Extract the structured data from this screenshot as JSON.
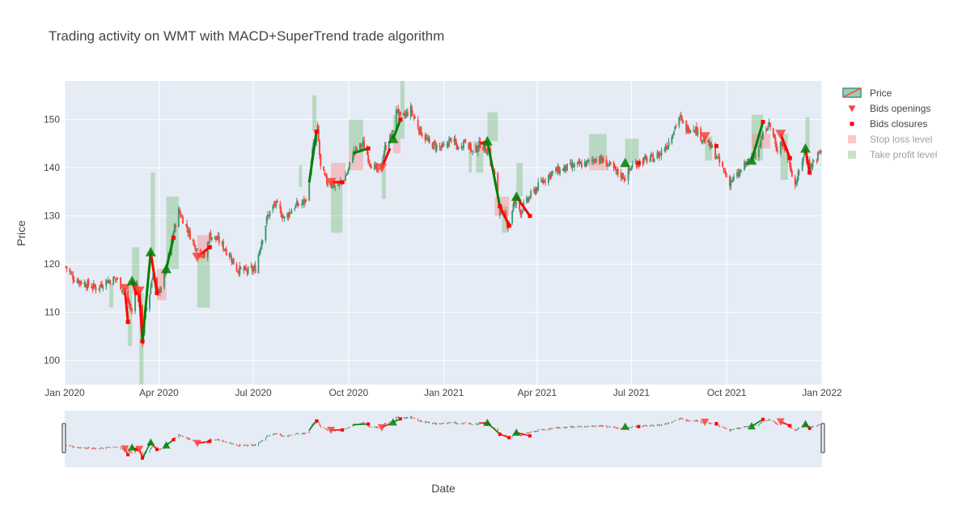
{
  "chart_data": {
    "type": "candlestick",
    "title": "Trading activity on WMT with MACD+SuperTrend trade algorithm",
    "xlabel": "Date",
    "ylabel": "Price",
    "xlim": [
      "2020-01-01",
      "2022-01-01"
    ],
    "ylim": [
      95,
      158
    ],
    "yticks": [
      100,
      110,
      120,
      130,
      140,
      150
    ],
    "xticks": [
      {
        "date": "2020-01-01",
        "label": "Jan 2020"
      },
      {
        "date": "2020-04-01",
        "label": "Apr 2020"
      },
      {
        "date": "2020-07-01",
        "label": "Jul 2020"
      },
      {
        "date": "2020-10-01",
        "label": "Oct 2020"
      },
      {
        "date": "2021-01-01",
        "label": "Jan 2021"
      },
      {
        "date": "2021-04-01",
        "label": "Apr 2021"
      },
      {
        "date": "2021-07-01",
        "label": "Jul 2021"
      },
      {
        "date": "2021-10-01",
        "label": "Oct 2021"
      },
      {
        "date": "2022-01-01",
        "label": "Jan 2022"
      }
    ],
    "grid": true,
    "legend_position": "top-right",
    "rangeslider": true,
    "colors": {
      "increasing": "#3D9970",
      "decreasing": "#FF4136",
      "background": "#E5ECF6",
      "buy": "#008000",
      "sell": "#FF0000",
      "stop_loss": "#FF8080",
      "take_profit": "#80C080"
    },
    "legend": [
      {
        "name": "Price",
        "marker": "candle",
        "color": "#3D9970",
        "faded": false
      },
      {
        "name": "Bids openings",
        "marker": "triangle-down",
        "color": "#FF4136",
        "faded": false
      },
      {
        "name": "Bids closures",
        "marker": "square",
        "color": "#FF0000",
        "faded": false
      },
      {
        "name": "Stop loss level",
        "marker": "rect",
        "color": "#FF8080",
        "faded": true
      },
      {
        "name": "Take profit level",
        "marker": "rect",
        "color": "#80C080",
        "faded": true
      }
    ],
    "price_anchors": [
      [
        "2020-01-02",
        119.5
      ],
      [
        "2020-01-10",
        117
      ],
      [
        "2020-01-20",
        116
      ],
      [
        "2020-02-01",
        115
      ],
      [
        "2020-02-10",
        116.5
      ],
      [
        "2020-02-20",
        117
      ],
      [
        "2020-02-28",
        114
      ],
      [
        "2020-03-06",
        110
      ],
      [
        "2020-03-10",
        117
      ],
      [
        "2020-03-16",
        104
      ],
      [
        "2020-03-19",
        110
      ],
      [
        "2020-03-23",
        114
      ],
      [
        "2020-03-26",
        118
      ],
      [
        "2020-03-31",
        113.5
      ],
      [
        "2020-04-08",
        119
      ],
      [
        "2020-04-13",
        125
      ],
      [
        "2020-04-20",
        131
      ],
      [
        "2020-04-27",
        128
      ],
      [
        "2020-05-05",
        124
      ],
      [
        "2020-05-15",
        121.5
      ],
      [
        "2020-05-20",
        126
      ],
      [
        "2020-05-28",
        125
      ],
      [
        "2020-06-08",
        122
      ],
      [
        "2020-06-15",
        119
      ],
      [
        "2020-06-25",
        118.5
      ],
      [
        "2020-07-03",
        119
      ],
      [
        "2020-07-08",
        124
      ],
      [
        "2020-07-15",
        130
      ],
      [
        "2020-07-22",
        132.5
      ],
      [
        "2020-07-31",
        129.5
      ],
      [
        "2020-08-10",
        132
      ],
      [
        "2020-08-20",
        133
      ],
      [
        "2020-08-24",
        137
      ],
      [
        "2020-08-28",
        145
      ],
      [
        "2020-09-01",
        148
      ],
      [
        "2020-09-04",
        140
      ],
      [
        "2020-09-10",
        137
      ],
      [
        "2020-09-20",
        136
      ],
      [
        "2020-09-30",
        139
      ],
      [
        "2020-10-05",
        143
      ],
      [
        "2020-10-15",
        145
      ],
      [
        "2020-10-22",
        141
      ],
      [
        "2020-10-30",
        139
      ],
      [
        "2020-11-05",
        144
      ],
      [
        "2020-11-12",
        147
      ],
      [
        "2020-11-17",
        152.5
      ],
      [
        "2020-11-20",
        150
      ],
      [
        "2020-11-30",
        152
      ],
      [
        "2020-12-08",
        148
      ],
      [
        "2020-12-18",
        145
      ],
      [
        "2020-12-31",
        144
      ],
      [
        "2021-01-08",
        146
      ],
      [
        "2021-01-15",
        144
      ],
      [
        "2021-01-22",
        146
      ],
      [
        "2021-01-29",
        143
      ],
      [
        "2021-02-05",
        145
      ],
      [
        "2021-02-12",
        143.5
      ],
      [
        "2021-02-19",
        138
      ],
      [
        "2021-02-24",
        131
      ],
      [
        "2021-03-01",
        129.5
      ],
      [
        "2021-03-04",
        128
      ],
      [
        "2021-03-10",
        133
      ],
      [
        "2021-03-16",
        131
      ],
      [
        "2021-03-25",
        134
      ],
      [
        "2021-04-05",
        137
      ],
      [
        "2021-04-15",
        139
      ],
      [
        "2021-04-30",
        140
      ],
      [
        "2021-05-10",
        140.5
      ],
      [
        "2021-05-20",
        141
      ],
      [
        "2021-05-28",
        142
      ],
      [
        "2021-06-07",
        141
      ],
      [
        "2021-06-17",
        139
      ],
      [
        "2021-06-25",
        138
      ],
      [
        "2021-07-02",
        140.5
      ],
      [
        "2021-07-12",
        141.5
      ],
      [
        "2021-07-22",
        142
      ],
      [
        "2021-07-29",
        143
      ],
      [
        "2021-08-05",
        145
      ],
      [
        "2021-08-16",
        150.5
      ],
      [
        "2021-08-23",
        148
      ],
      [
        "2021-08-30",
        148.5
      ],
      [
        "2021-09-08",
        146
      ],
      [
        "2021-09-17",
        144
      ],
      [
        "2021-09-24",
        141
      ],
      [
        "2021-10-04",
        137
      ],
      [
        "2021-10-12",
        138.5
      ],
      [
        "2021-10-20",
        141
      ],
      [
        "2021-10-26",
        142
      ],
      [
        "2021-11-02",
        145
      ],
      [
        "2021-11-10",
        149.5
      ],
      [
        "2021-11-16",
        146
      ],
      [
        "2021-11-18",
        143
      ],
      [
        "2021-11-22",
        146
      ],
      [
        "2021-11-30",
        141.5
      ],
      [
        "2021-12-06",
        136.5
      ],
      [
        "2021-12-10",
        139
      ],
      [
        "2021-12-15",
        143.5
      ],
      [
        "2021-12-20",
        140
      ],
      [
        "2021-12-31",
        143.5
      ]
    ],
    "openings": [
      {
        "date": "2020-02-28",
        "price": 115,
        "dir": "down"
      },
      {
        "date": "2020-03-06",
        "price": 116.5,
        "dir": "up"
      },
      {
        "date": "2020-03-13",
        "price": 114.5,
        "dir": "down"
      },
      {
        "date": "2020-03-24",
        "price": 122.5,
        "dir": "up"
      },
      {
        "date": "2020-04-08",
        "price": 119,
        "dir": "up"
      },
      {
        "date": "2020-05-08",
        "price": 121.5,
        "dir": "down"
      },
      {
        "date": "2020-09-14",
        "price": 137,
        "dir": "down"
      },
      {
        "date": "2020-11-02",
        "price": 140,
        "dir": "down"
      },
      {
        "date": "2020-11-13",
        "price": 146,
        "dir": "up"
      },
      {
        "date": "2021-02-12",
        "price": 145.5,
        "dir": "up"
      },
      {
        "date": "2021-03-12",
        "price": 134,
        "dir": "up"
      },
      {
        "date": "2021-06-25",
        "price": 141,
        "dir": "up"
      },
      {
        "date": "2021-09-10",
        "price": 146.5,
        "dir": "down"
      },
      {
        "date": "2021-10-25",
        "price": 141.5,
        "dir": "up"
      },
      {
        "date": "2021-11-22",
        "price": 147,
        "dir": "down"
      },
      {
        "date": "2021-12-16",
        "price": 144,
        "dir": "up"
      }
    ],
    "closures": [
      {
        "date": "2020-03-02",
        "price": 108
      },
      {
        "date": "2020-03-10",
        "price": 114
      },
      {
        "date": "2020-03-16",
        "price": 104
      },
      {
        "date": "2020-03-30",
        "price": 114
      },
      {
        "date": "2020-04-15",
        "price": 125.5
      },
      {
        "date": "2020-05-20",
        "price": 123.5
      },
      {
        "date": "2020-08-31",
        "price": 147.5
      },
      {
        "date": "2020-09-25",
        "price": 137
      },
      {
        "date": "2020-10-20",
        "price": 144
      },
      {
        "date": "2020-11-20",
        "price": 150
      },
      {
        "date": "2021-02-24",
        "price": 132
      },
      {
        "date": "2021-03-05",
        "price": 128
      },
      {
        "date": "2021-03-25",
        "price": 130
      },
      {
        "date": "2021-07-08",
        "price": 141
      },
      {
        "date": "2021-09-21",
        "price": 144.5
      },
      {
        "date": "2021-11-05",
        "price": 149.5
      },
      {
        "date": "2021-12-01",
        "price": 142
      },
      {
        "date": "2021-12-20",
        "price": 139
      }
    ],
    "trade_lines": [
      {
        "from": [
          "2020-02-28",
          115
        ],
        "to": [
          "2020-03-02",
          108
        ],
        "color": "#FF0000"
      },
      {
        "from": [
          "2020-03-06",
          116.5
        ],
        "to": [
          "2020-03-10",
          114
        ],
        "color": "#FF0000"
      },
      {
        "from": [
          "2020-03-13",
          114.5
        ],
        "to": [
          "2020-03-16",
          104
        ],
        "color": "#FF0000"
      },
      {
        "from": [
          "2020-03-16",
          104
        ],
        "to": [
          "2020-03-24",
          122.5
        ],
        "color": "#008000"
      },
      {
        "from": [
          "2020-03-24",
          122.5
        ],
        "to": [
          "2020-03-30",
          114
        ],
        "color": "#FF0000"
      },
      {
        "from": [
          "2020-04-08",
          119
        ],
        "to": [
          "2020-04-15",
          125.5
        ],
        "color": "#008000"
      },
      {
        "from": [
          "2020-05-08",
          121.5
        ],
        "to": [
          "2020-05-20",
          123.5
        ],
        "color": "#FF0000"
      },
      {
        "from": [
          "2020-08-24",
          137
        ],
        "to": [
          "2020-08-31",
          147.5
        ],
        "color": "#008000"
      },
      {
        "from": [
          "2020-09-14",
          137
        ],
        "to": [
          "2020-09-25",
          137
        ],
        "color": "#FF0000"
      },
      {
        "from": [
          "2020-10-05",
          143
        ],
        "to": [
          "2020-10-20",
          144
        ],
        "color": "#008000"
      },
      {
        "from": [
          "2020-11-02",
          140
        ],
        "to": [
          "2020-11-10",
          144
        ],
        "color": "#FF0000"
      },
      {
        "from": [
          "2020-11-13",
          146
        ],
        "to": [
          "2020-11-20",
          150
        ],
        "color": "#008000"
      },
      {
        "from": [
          "2021-02-05",
          145
        ],
        "to": [
          "2021-02-12",
          145.5
        ],
        "color": "#FF0000"
      },
      {
        "from": [
          "2021-02-12",
          145.5
        ],
        "to": [
          "2021-02-24",
          132
        ],
        "color": "#008000"
      },
      {
        "from": [
          "2021-02-24",
          132
        ],
        "to": [
          "2021-03-05",
          128
        ],
        "color": "#FF0000"
      },
      {
        "from": [
          "2021-03-12",
          134
        ],
        "to": [
          "2021-03-25",
          130
        ],
        "color": "#FF0000"
      },
      {
        "from": [
          "2021-10-25",
          141.5
        ],
        "to": [
          "2021-11-05",
          149.5
        ],
        "color": "#008000"
      },
      {
        "from": [
          "2021-11-22",
          147
        ],
        "to": [
          "2021-12-01",
          142
        ],
        "color": "#FF0000"
      },
      {
        "from": [
          "2021-12-16",
          144
        ],
        "to": [
          "2021-12-20",
          139
        ],
        "color": "#FF0000"
      }
    ],
    "take_profit_zones": [
      {
        "x0": "2020-02-13",
        "x1": "2020-02-17",
        "y0": 111,
        "y1": 116
      },
      {
        "x0": "2020-03-02",
        "x1": "2020-03-06",
        "y0": 103,
        "y1": 116.5
      },
      {
        "x0": "2020-03-06",
        "x1": "2020-03-13",
        "y0": 114,
        "y1": 123.5
      },
      {
        "x0": "2020-03-13",
        "x1": "2020-03-17",
        "y0": 95,
        "y1": 114
      },
      {
        "x0": "2020-03-24",
        "x1": "2020-03-28",
        "y0": 122.5,
        "y1": 139
      },
      {
        "x0": "2020-04-08",
        "x1": "2020-04-20",
        "y0": 119,
        "y1": 134
      },
      {
        "x0": "2020-05-08",
        "x1": "2020-05-20",
        "y0": 111,
        "y1": 121.5
      },
      {
        "x0": "2020-08-14",
        "x1": "2020-08-17",
        "y0": 136,
        "y1": 140.5
      },
      {
        "x0": "2020-08-27",
        "x1": "2020-08-31",
        "y0": 147.5,
        "y1": 155
      },
      {
        "x0": "2020-09-14",
        "x1": "2020-09-25",
        "y0": 126.5,
        "y1": 137
      },
      {
        "x0": "2020-10-01",
        "x1": "2020-10-15",
        "y0": 143,
        "y1": 150
      },
      {
        "x0": "2020-11-02",
        "x1": "2020-11-06",
        "y0": 133.5,
        "y1": 140
      },
      {
        "x0": "2020-11-13",
        "x1": "2020-11-24",
        "y0": 146,
        "y1": 151
      },
      {
        "x0": "2020-11-20",
        "x1": "2020-11-24",
        "y0": 151,
        "y1": 158
      },
      {
        "x0": "2021-01-25",
        "x1": "2021-01-28",
        "y0": 139,
        "y1": 144
      },
      {
        "x0": "2021-02-01",
        "x1": "2021-02-08",
        "y0": 139,
        "y1": 143
      },
      {
        "x0": "2021-02-12",
        "x1": "2021-02-22",
        "y0": 145.5,
        "y1": 151.5
      },
      {
        "x0": "2021-02-26",
        "x1": "2021-03-04",
        "y0": 126.5,
        "y1": 132
      },
      {
        "x0": "2021-03-12",
        "x1": "2021-03-18",
        "y0": 134,
        "y1": 141
      },
      {
        "x0": "2021-05-21",
        "x1": "2021-06-07",
        "y0": 142,
        "y1": 147
      },
      {
        "x0": "2021-06-25",
        "x1": "2021-07-08",
        "y0": 141,
        "y1": 146
      },
      {
        "x0": "2021-09-10",
        "x1": "2021-09-17",
        "y0": 141.5,
        "y1": 146.5
      },
      {
        "x0": "2021-10-25",
        "x1": "2021-11-05",
        "y0": 141.5,
        "y1": 151
      },
      {
        "x0": "2021-11-22",
        "x1": "2021-11-29",
        "y0": 137.5,
        "y1": 147
      },
      {
        "x0": "2021-12-16",
        "x1": "2021-12-20",
        "y0": 144,
        "y1": 150.5
      }
    ],
    "stop_loss_zones": [
      {
        "x0": "2020-03-30",
        "x1": "2020-04-08",
        "y0": 112.5,
        "y1": 119
      },
      {
        "x0": "2020-05-08",
        "x1": "2020-05-20",
        "y0": 121.5,
        "y1": 126
      },
      {
        "x0": "2020-09-14",
        "x1": "2020-09-28",
        "y0": 137,
        "y1": 141
      },
      {
        "x0": "2020-10-01",
        "x1": "2020-10-15",
        "y0": 139.5,
        "y1": 143
      },
      {
        "x0": "2020-11-13",
        "x1": "2020-11-20",
        "y0": 143,
        "y1": 146
      },
      {
        "x0": "2021-01-29",
        "x1": "2021-02-12",
        "y0": 143,
        "y1": 145.5
      },
      {
        "x0": "2021-02-19",
        "x1": "2021-03-05",
        "y0": 130,
        "y1": 134
      },
      {
        "x0": "2021-05-21",
        "x1": "2021-06-07",
        "y0": 139.5,
        "y1": 142
      },
      {
        "x0": "2021-10-25",
        "x1": "2021-11-12",
        "y0": 144,
        "y1": 147
      }
    ]
  }
}
